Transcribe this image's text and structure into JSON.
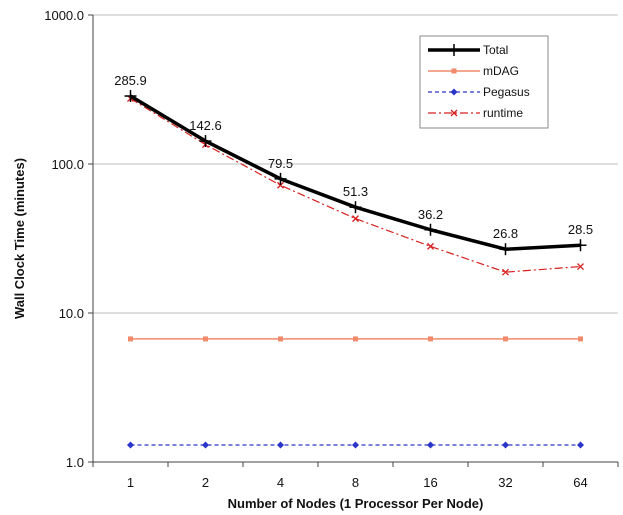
{
  "chart_data": {
    "type": "line",
    "xlabel": "Number of Nodes (1 Processor Per Node)",
    "ylabel": "Wall Clock Time (minutes)",
    "yscale": "log",
    "ylim": [
      1.0,
      1000.0
    ],
    "y_ticks": [
      "1.0",
      "10.0",
      "100.0",
      "1000.0"
    ],
    "y_tick_values": [
      1,
      10,
      100,
      1000
    ],
    "categories": [
      "1",
      "2",
      "4",
      "8",
      "16",
      "32",
      "64"
    ],
    "grid": "horizontal",
    "legend": "top-right",
    "series": [
      {
        "name": "Total",
        "values": [
          285.9,
          142.6,
          79.5,
          51.3,
          36.2,
          26.8,
          28.5
        ],
        "labels": [
          "285.9",
          "142.6",
          "79.5",
          "51.3",
          "36.2",
          "26.8",
          "28.5"
        ],
        "color": "#000000",
        "style": "solid-thick",
        "marker": "plus"
      },
      {
        "name": "mDAG",
        "values": [
          6.7,
          6.7,
          6.7,
          6.7,
          6.7,
          6.7,
          6.7
        ],
        "color": "#f08a6a",
        "style": "solid",
        "marker": "square"
      },
      {
        "name": "Pegasus",
        "values": [
          1.3,
          1.3,
          1.3,
          1.3,
          1.3,
          1.3,
          1.3
        ],
        "color": "#2a35c8",
        "style": "dashed",
        "marker": "diamond"
      },
      {
        "name": "runtime",
        "values": [
          275,
          135,
          72,
          43,
          28,
          18.8,
          20.5
        ],
        "color": "#d62020",
        "style": "dashdot",
        "marker": "x"
      }
    ]
  }
}
